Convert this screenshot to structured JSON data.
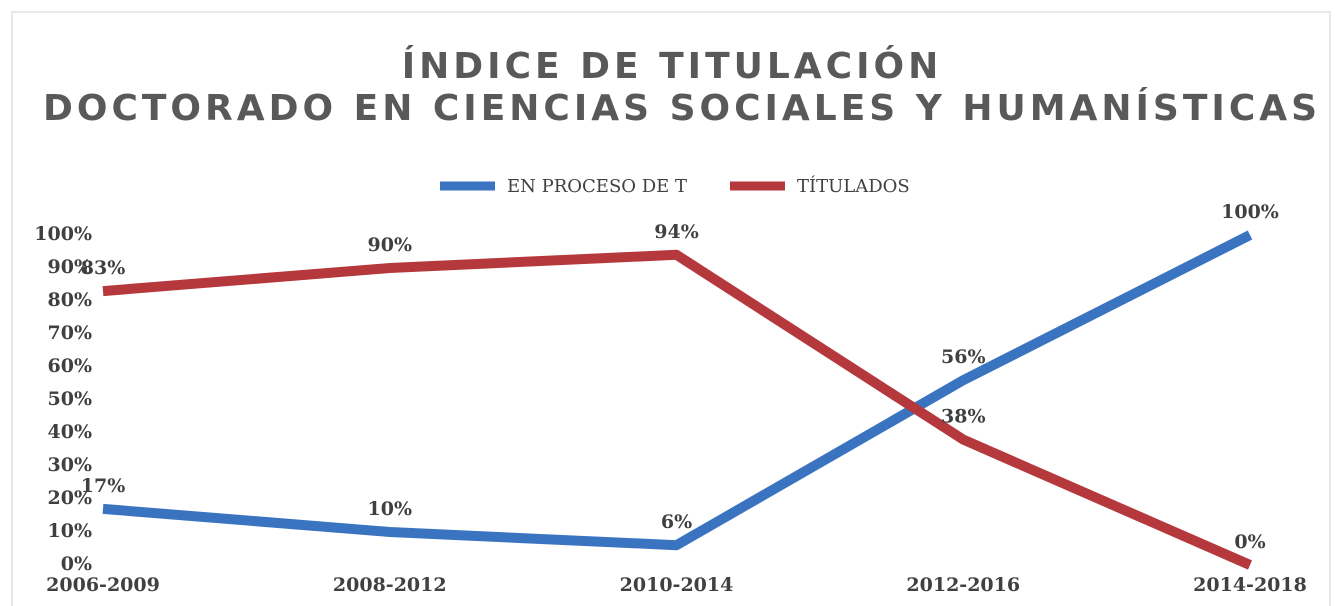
{
  "chart_data": {
    "type": "line",
    "title": "ÍNDICE DE TITULACIÓN",
    "subtitle": "DOCTORADO EN CIENCIAS SOCIALES Y HUMANÍSTICAS",
    "categories": [
      "2006-2009",
      "2008-2012",
      "2010-2014",
      "2012-2016",
      "2014-2018"
    ],
    "series": [
      {
        "name": "EN PROCESO DE T",
        "color": "#3a73c0",
        "values": [
          17,
          10,
          6,
          56,
          100
        ],
        "value_labels": [
          "17%",
          "10%",
          "6%",
          "56%",
          "100%"
        ]
      },
      {
        "name": "TÍTULADOS",
        "color": "#b5383c",
        "values": [
          83,
          90,
          94,
          38,
          0
        ],
        "value_labels": [
          "83%",
          "90%",
          "94%",
          "38%",
          "0%"
        ]
      }
    ],
    "ylim": [
      0,
      100
    ],
    "yticks": [
      {
        "value": 0,
        "label": "0%"
      },
      {
        "value": 10,
        "label": "10%"
      },
      {
        "value": 20,
        "label": "20%"
      },
      {
        "value": 30,
        "label": "30%"
      },
      {
        "value": 40,
        "label": "40%"
      },
      {
        "value": 50,
        "label": "50%"
      },
      {
        "value": 60,
        "label": "60%"
      },
      {
        "value": 70,
        "label": "70%"
      },
      {
        "value": 80,
        "label": "80%"
      },
      {
        "value": 90,
        "label": "90%"
      },
      {
        "value": 100,
        "label": "100%"
      }
    ],
    "grid": false,
    "legend": "top"
  }
}
